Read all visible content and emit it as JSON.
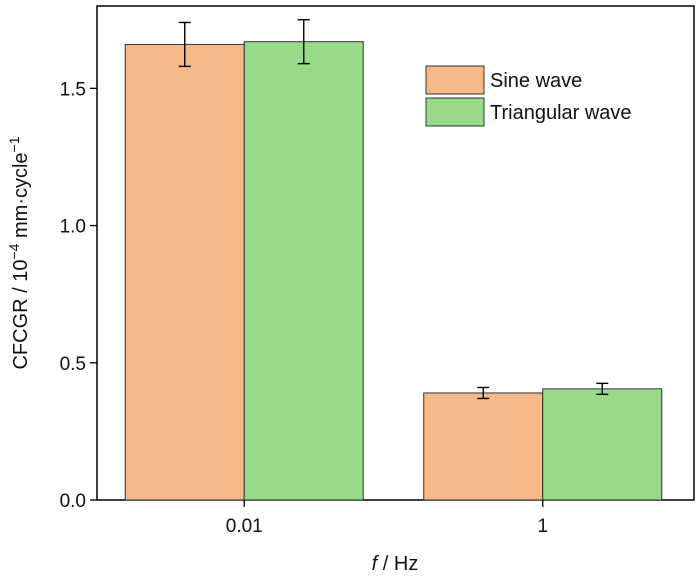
{
  "chart_data": {
    "type": "bar",
    "categories": [
      "0.01",
      "1"
    ],
    "series": [
      {
        "name": "Sine wave",
        "values": [
          1.66,
          0.39
        ],
        "errors": [
          0.08,
          0.02
        ],
        "color": "#F7B987"
      },
      {
        "name": "Triangular wave",
        "values": [
          1.67,
          0.405
        ],
        "errors": [
          0.08,
          0.02
        ],
        "color": "#98D98A"
      }
    ],
    "xlabel": {
      "italic": "f",
      "rest": " / Hz"
    },
    "ylabel": {
      "base": "CFCGR / 10",
      "exp1": "−4",
      "mid": " mm·cycle",
      "exp2": "−1"
    },
    "ylim": [
      0,
      1.8
    ],
    "yticks": [
      0.0,
      0.5,
      1.0,
      1.5
    ],
    "ytick_labels": [
      "0.0",
      "0.5",
      "1.0",
      "1.5"
    ],
    "legend": "top-right",
    "grid": false
  }
}
